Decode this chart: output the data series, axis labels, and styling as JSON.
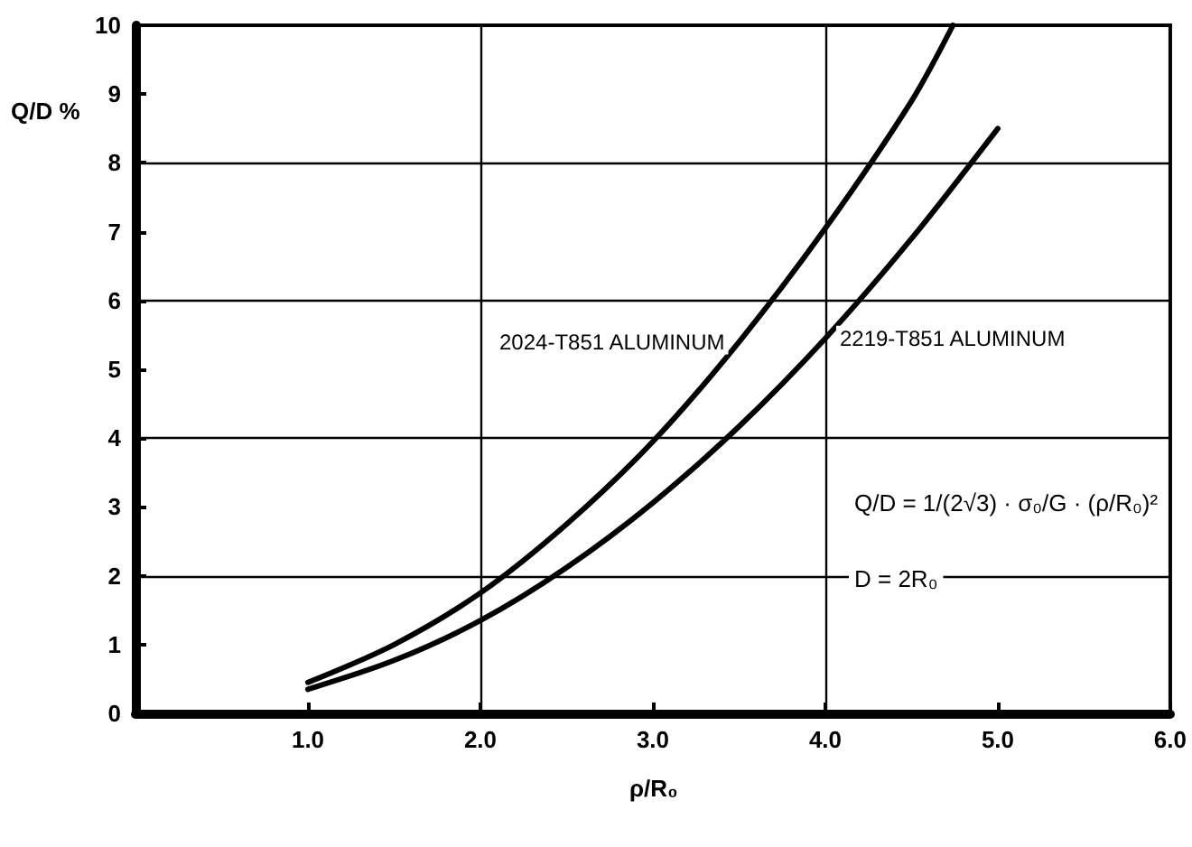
{
  "chart_data": {
    "type": "line",
    "xlabel": "ρ/R₀",
    "ylabel": "Q/D %",
    "series": [
      {
        "name": "2024-T851 ALUMINUM",
        "color": "#000000",
        "x": [
          1,
          1.5,
          2,
          2.5,
          3,
          3.5,
          4,
          4.5,
          4.74
        ],
        "values": [
          0.45,
          1.0,
          1.75,
          2.75,
          3.95,
          5.4,
          7.05,
          8.9,
          10
        ]
      },
      {
        "name": "2219-T851 ALUMINUM",
        "color": "#000000",
        "x": [
          1,
          1.5,
          2,
          2.5,
          3,
          3.5,
          4,
          4.5,
          5
        ],
        "values": [
          0.35,
          0.77,
          1.35,
          2.12,
          3.06,
          4.17,
          5.45,
          6.9,
          8.5
        ]
      }
    ],
    "xlim": [
      0,
      6
    ],
    "xticks": [
      {
        "value": 1,
        "label": "1.0"
      },
      {
        "value": 2,
        "label": "2.0"
      },
      {
        "value": 3,
        "label": "3.0"
      },
      {
        "value": 4,
        "label": "4.0"
      },
      {
        "value": 5,
        "label": "5.0"
      },
      {
        "value": 6,
        "label": "6.0"
      }
    ],
    "ylim": [
      0,
      10
    ],
    "yticks": [
      0,
      1,
      2,
      3,
      4,
      5,
      6,
      7,
      8,
      9,
      10
    ],
    "annotations": [
      "Q/D = 1/(2√3) · σ₀/G · (ρ/R₀)²",
      "D = 2R₀"
    ],
    "grid": true,
    "legend": false,
    "marker": "none",
    "line_style": "solid"
  }
}
